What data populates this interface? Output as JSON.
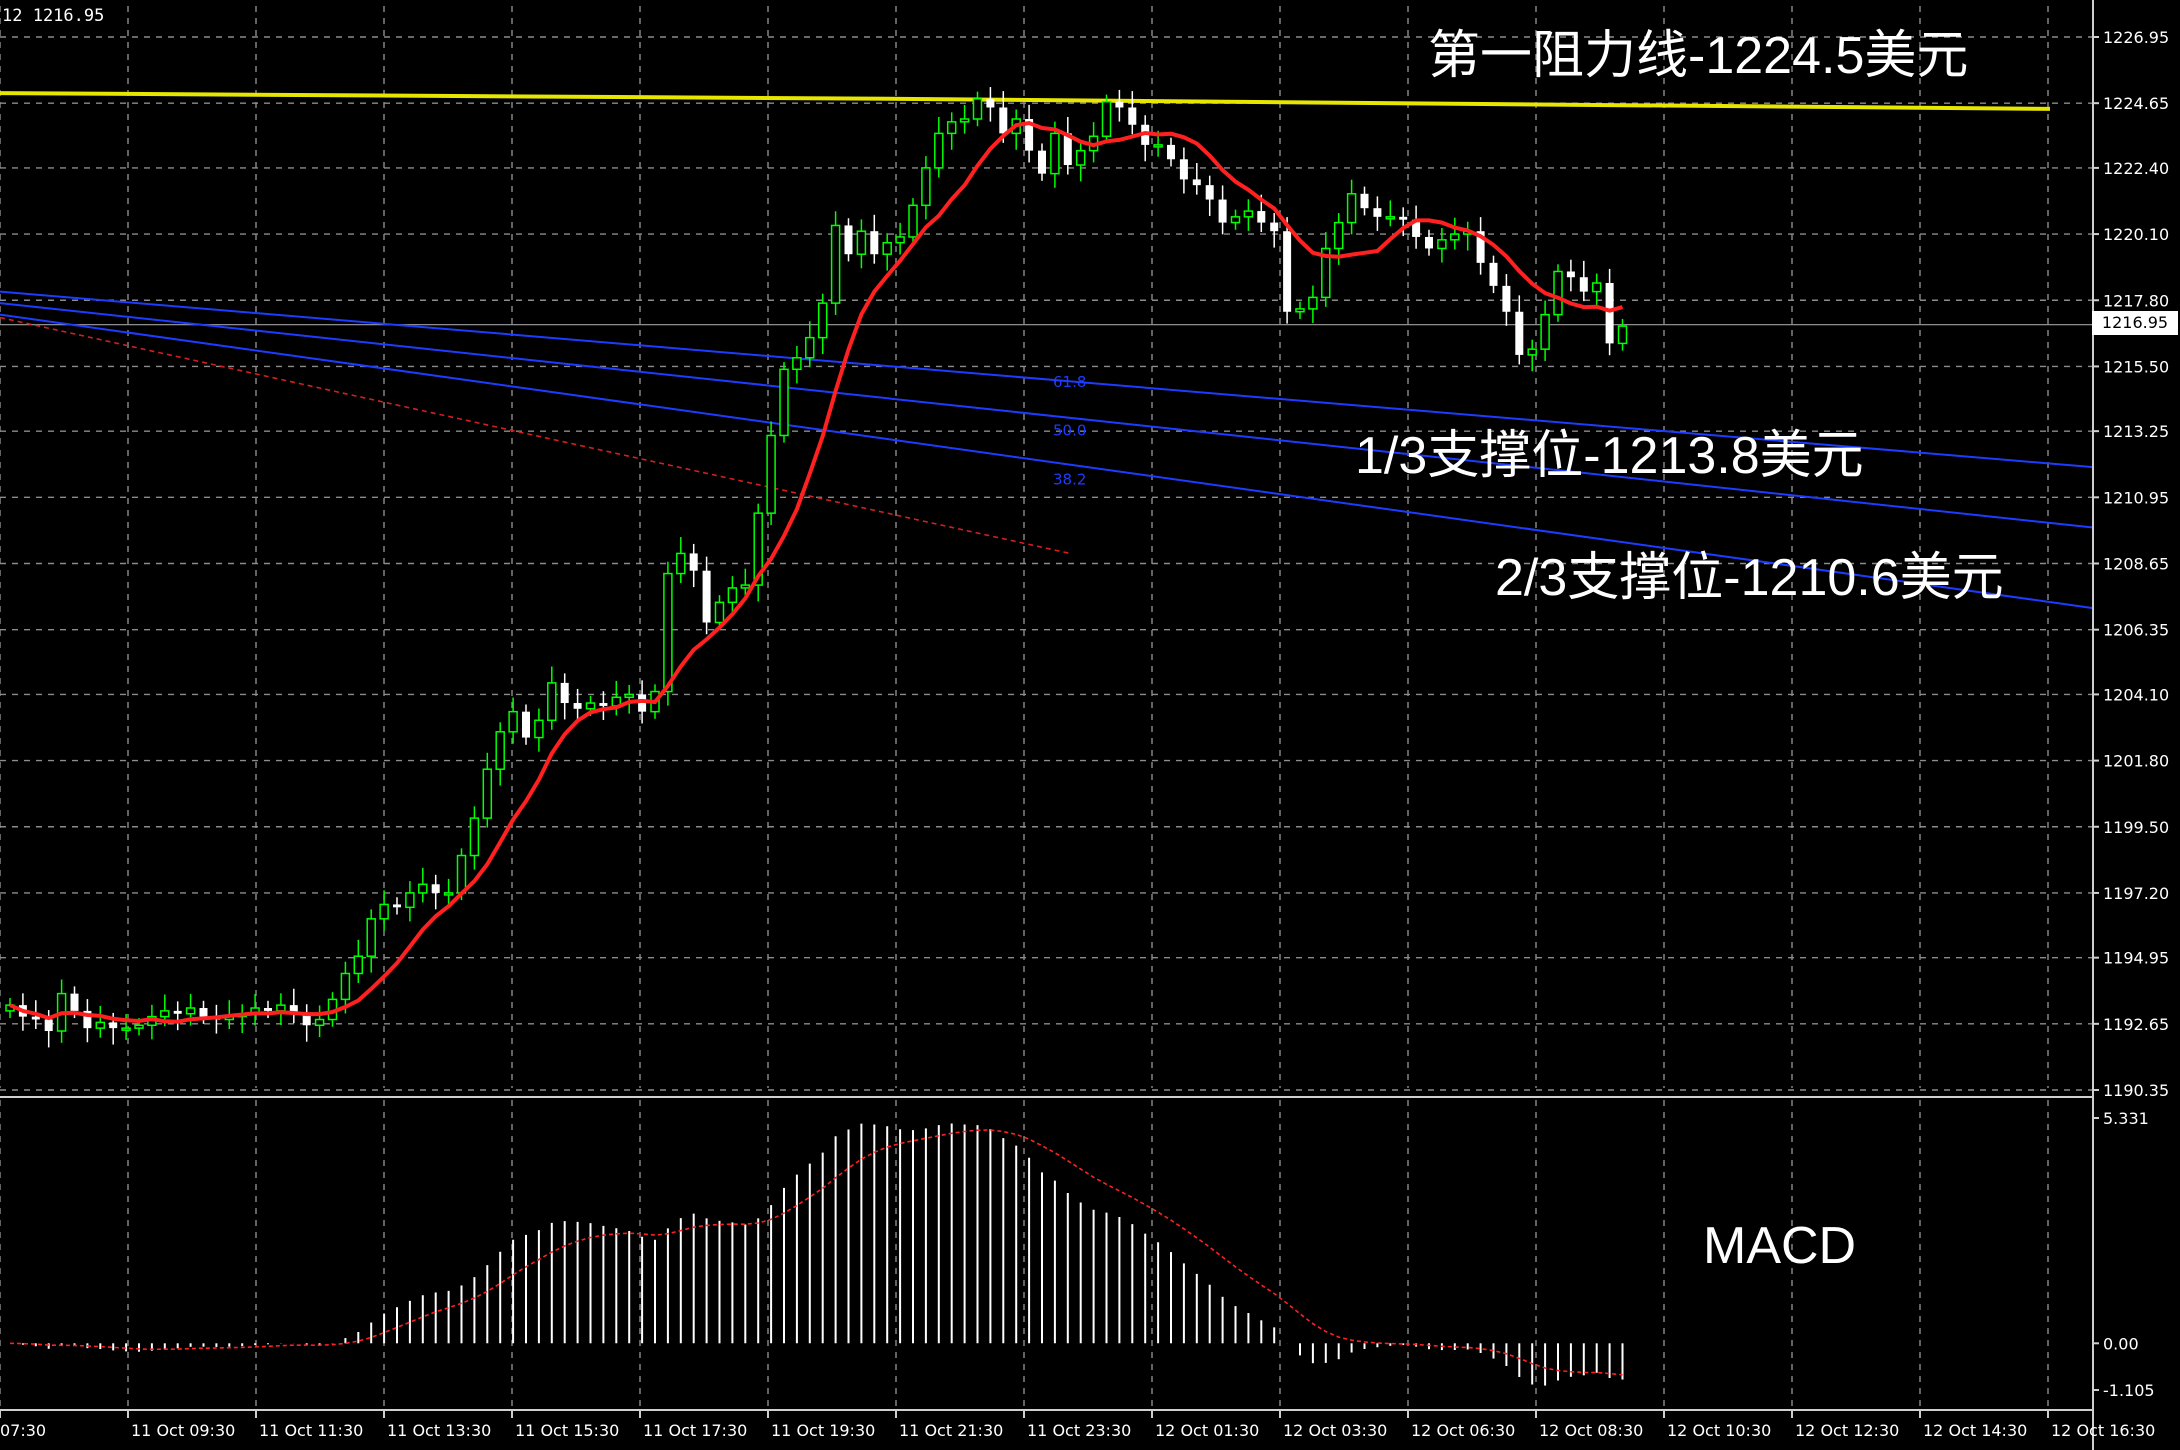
{
  "window": {
    "symbol_info": "12 1216.95"
  },
  "annotations": {
    "resistance": "第一阻力线-1224.5美元",
    "support1": "1/3支撑位-1213.8美元",
    "support2": "2/3支撑位-1210.6美元",
    "indicator": "MACD"
  },
  "current_price": "1216.95",
  "colors": {
    "background": "#000000",
    "grid": "#8c8c8c",
    "bull_candle": "#00ff00",
    "bear_candle": "#ffffff",
    "moving_average": "#ff2020",
    "resistance_line": "#e6e600",
    "fib_lines": "#1e3cff",
    "macd_signal": "#ff2020",
    "macd_histogram": "#ffffff"
  },
  "chart_data": [
    {
      "type": "candlestick",
      "title": "",
      "price_axis": [
        "1226.95",
        "1224.65",
        "1222.40",
        "1220.10",
        "1217.80",
        "1215.50",
        "1213.25",
        "1210.95",
        "1208.65",
        "1206.35",
        "1204.10",
        "1201.80",
        "1199.50",
        "1197.20",
        "1194.95",
        "1192.65",
        "1190.35"
      ],
      "ylim": [
        1190.35,
        1226.95
      ],
      "time_axis": [
        "07:30",
        "11 Oct 09:30",
        "11 Oct 11:30",
        "11 Oct 13:30",
        "11 Oct 15:30",
        "11 Oct 17:30",
        "11 Oct 19:30",
        "11 Oct 21:30",
        "11 Oct 23:30",
        "12 Oct 01:30",
        "12 Oct 03:30",
        "12 Oct 06:30",
        "12 Oct 08:30",
        "12 Oct 10:30",
        "12 Oct 12:30",
        "12 Oct 14:30",
        "12 Oct 16:30"
      ],
      "fib_labels": [
        "61.8",
        "50.0",
        "38.2"
      ],
      "resistance_level": 1224.5,
      "support_levels": [
        1213.8,
        1210.6
      ],
      "grid": true,
      "closes": [
        1193.3,
        1192.9,
        1192.8,
        1192.4,
        1193.7,
        1193.1,
        1192.5,
        1192.7,
        1192.5,
        1192.5,
        1192.6,
        1192.9,
        1193.1,
        1193.0,
        1193.2,
        1192.9,
        1192.8,
        1192.9,
        1193.0,
        1193.2,
        1193.1,
        1193.3,
        1193.0,
        1192.6,
        1192.8,
        1193.5,
        1194.4,
        1195.0,
        1196.3,
        1196.8,
        1196.7,
        1197.2,
        1197.5,
        1197.2,
        1197.2,
        1198.5,
        1199.8,
        1201.5,
        1202.8,
        1203.5,
        1202.6,
        1203.2,
        1204.5,
        1203.8,
        1203.6,
        1203.8,
        1203.7,
        1204.0,
        1204.1,
        1203.5,
        1204.2,
        1208.3,
        1209.0,
        1208.4,
        1206.6,
        1207.3,
        1207.8,
        1207.9,
        1210.4,
        1213.1,
        1215.4,
        1215.8,
        1216.5,
        1217.7,
        1220.4,
        1219.4,
        1220.2,
        1219.4,
        1219.8,
        1220.0,
        1221.1,
        1222.4,
        1223.6,
        1224.0,
        1224.1,
        1224.8,
        1224.5,
        1223.6,
        1224.1,
        1223.0,
        1222.2,
        1223.6,
        1222.5,
        1223.0,
        1223.5,
        1224.7,
        1224.5,
        1223.9,
        1223.2,
        1223.2,
        1222.7,
        1222.0,
        1221.8,
        1221.3,
        1220.5,
        1220.7,
        1220.9,
        1220.5,
        1220.2,
        1217.4,
        1217.5,
        1217.9,
        1219.6,
        1220.5,
        1221.5,
        1221.0,
        1220.7,
        1220.7,
        1220.6,
        1220.0,
        1219.6,
        1219.9,
        1220.1,
        1220.2,
        1219.1,
        1218.3,
        1217.4,
        1215.9,
        1216.1,
        1217.3,
        1218.8,
        1218.6,
        1218.1,
        1218.4,
        1216.3,
        1216.9
      ]
    },
    {
      "type": "bar",
      "title": "MACD",
      "ylim": [
        -1.105,
        5.331
      ],
      "axis_labels": [
        "5.331",
        "0.00",
        "-1.105"
      ],
      "grid": true
    }
  ]
}
